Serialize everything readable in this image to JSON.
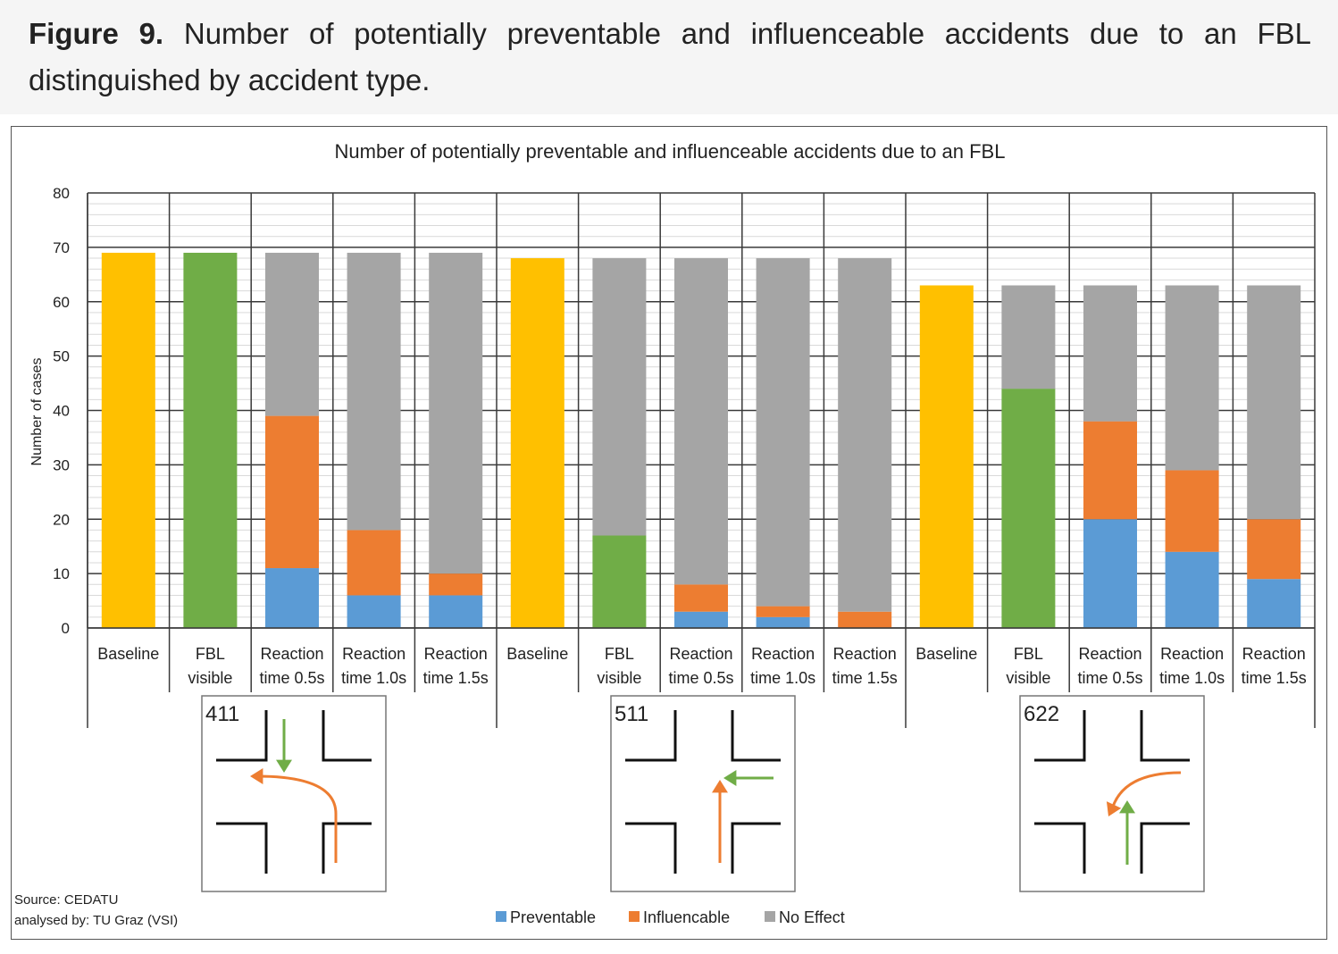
{
  "caption": {
    "label": "Figure 9.",
    "text": "Number of potentially preventable and influenceable accidents due to an FBL distinguished by accident type."
  },
  "source": {
    "line1": "Source: CEDATU",
    "line2": "analysed by: TU Graz (VSI)"
  },
  "colors": {
    "baseline": "#FFC000",
    "fbl_visible": "#70AD47",
    "preventable": "#5B9BD5",
    "influencable": "#ED7D31",
    "no_effect": "#A5A5A5",
    "arrow_green": "#70AD47",
    "arrow_orange": "#ED7D31"
  },
  "chart_data": {
    "type": "bar",
    "stacked": true,
    "title": "Number of potentially preventable and influenceable accidents due to an FBL",
    "ylabel": "Number of cases",
    "xlabel": "",
    "ylim": [
      0,
      80
    ],
    "yticks": [
      "0",
      "10",
      "20",
      "30",
      "40",
      "50",
      "60",
      "70",
      "80"
    ],
    "grid": true,
    "legend_position": "bottom",
    "legend": [
      "Preventable",
      "Influencable",
      "No Effect"
    ],
    "groups": [
      {
        "accident_type": "411",
        "bars": [
          {
            "label": [
              "Baseline"
            ],
            "baseline": 69
          },
          {
            "label": [
              "FBL",
              "visible"
            ],
            "fbl_visible": 69
          },
          {
            "label": [
              "Reaction",
              "time 0.5s"
            ],
            "preventable": 11,
            "influencable": 28,
            "no_effect": 30
          },
          {
            "label": [
              "Reaction",
              "time 1.0s"
            ],
            "preventable": 6,
            "influencable": 12,
            "no_effect": 51
          },
          {
            "label": [
              "Reaction",
              "time 1.5s"
            ],
            "preventable": 6,
            "influencable": 4,
            "no_effect": 59
          }
        ]
      },
      {
        "accident_type": "511",
        "bars": [
          {
            "label": [
              "Baseline"
            ],
            "baseline": 68
          },
          {
            "label": [
              "FBL",
              "visible"
            ],
            "fbl_visible": 17,
            "no_effect": 51
          },
          {
            "label": [
              "Reaction",
              "time 0.5s"
            ],
            "preventable": 3,
            "influencable": 5,
            "no_effect": 60
          },
          {
            "label": [
              "Reaction",
              "time 1.0s"
            ],
            "preventable": 2,
            "influencable": 2,
            "no_effect": 64
          },
          {
            "label": [
              "Reaction",
              "time 1.5s"
            ],
            "preventable": 0,
            "influencable": 3,
            "no_effect": 65
          }
        ]
      },
      {
        "accident_type": "622",
        "bars": [
          {
            "label": [
              "Baseline"
            ],
            "baseline": 63
          },
          {
            "label": [
              "FBL",
              "visible"
            ],
            "fbl_visible": 44,
            "no_effect": 19
          },
          {
            "label": [
              "Reaction",
              "time 0.5s"
            ],
            "preventable": 20,
            "influencable": 18,
            "no_effect": 25
          },
          {
            "label": [
              "Reaction",
              "time 1.0s"
            ],
            "preventable": 14,
            "influencable": 15,
            "no_effect": 34
          },
          {
            "label": [
              "Reaction",
              "time 1.5s"
            ],
            "preventable": 9,
            "influencable": 11,
            "no_effect": 43
          }
        ]
      }
    ]
  }
}
